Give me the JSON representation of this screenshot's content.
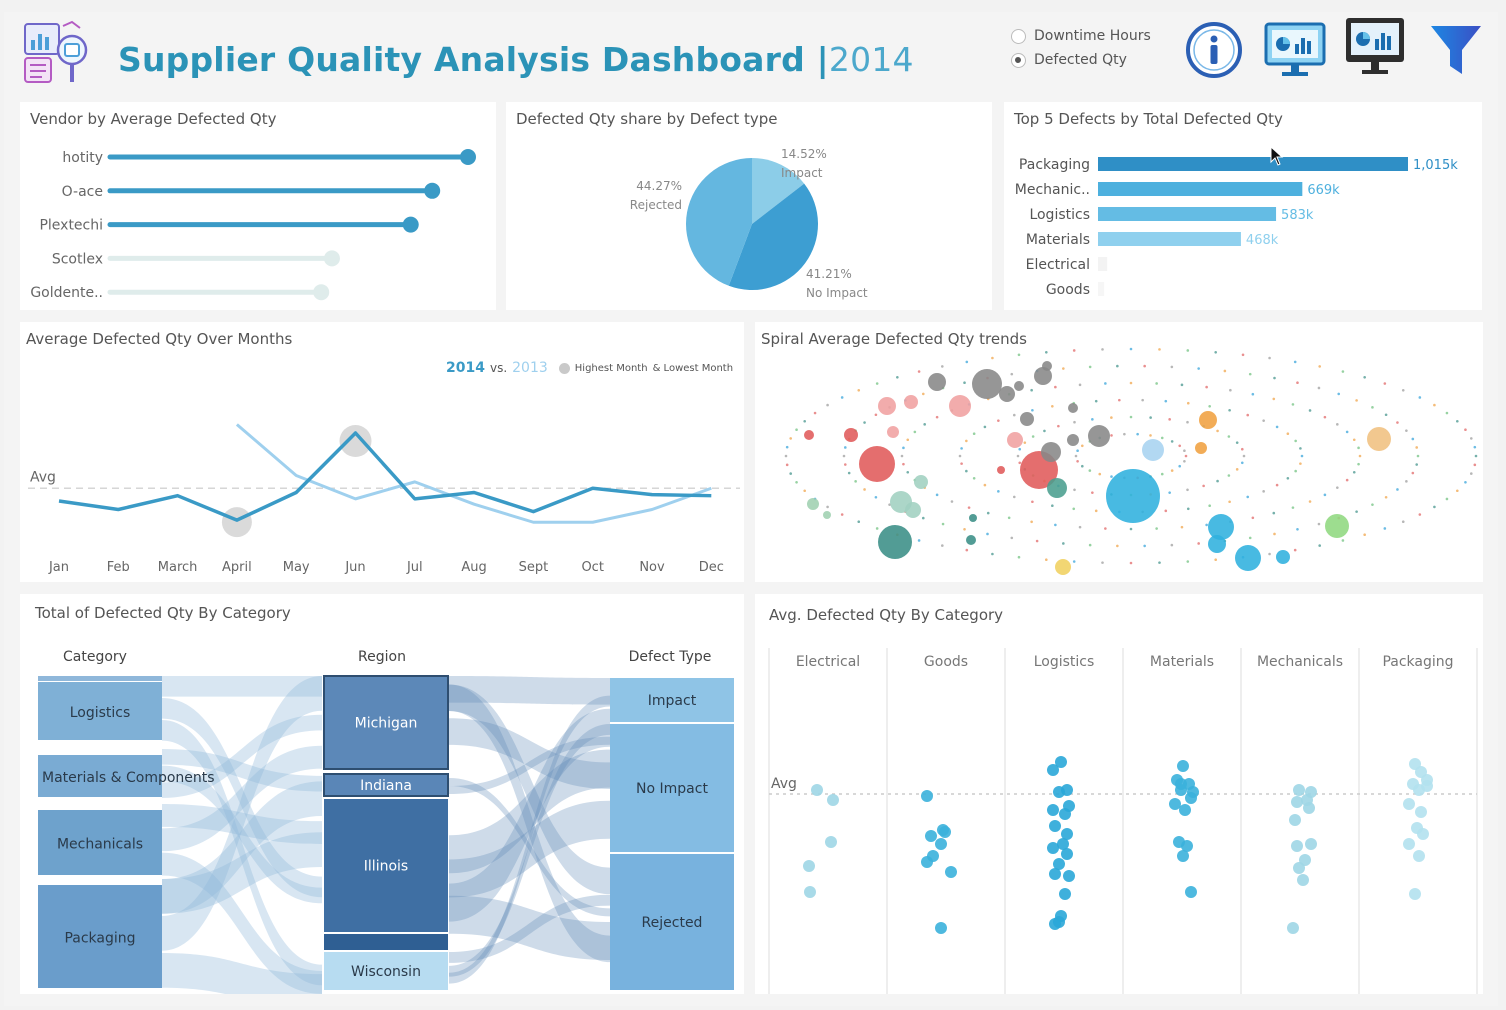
{
  "header": {
    "title": "Supplier Quality Analysis Dashboard",
    "separator": "|",
    "year": "2014",
    "radio_options": [
      {
        "label": "Downtime Hours",
        "selected": false
      },
      {
        "label": "Defected Qty",
        "selected": true
      }
    ],
    "icons": [
      "dashboard-logo-icon",
      "info-icon",
      "monitor-dashboard-icon",
      "dark-monitor-dashboard-icon",
      "filter-icon"
    ]
  },
  "colors": {
    "primary": "#2b93b7",
    "line_2014": "#3a9ac6",
    "line_2013": "#9fd0ee",
    "sankey_dark": "#4c7fae",
    "sankey_light": "#a9cfe7"
  },
  "vendor_panel": {
    "title": "Vendor  by Average Defected Qty",
    "chart_data": {
      "type": "bar",
      "categories": [
        "hotity",
        "O-ace",
        "Plextechi",
        "Scotlex",
        "Goldente.."
      ],
      "values": [
        1.0,
        0.9,
        0.84,
        0.62,
        0.59
      ],
      "highlighted": [
        true,
        true,
        true,
        false,
        false
      ]
    }
  },
  "pie_panel": {
    "title": "Defected Qty share by Defect type",
    "chart_data": {
      "type": "pie",
      "slices": [
        {
          "label": "Impact",
          "pct_label": "14.52%",
          "value": 14.52,
          "color": "#8ccde8"
        },
        {
          "label": "No Impact",
          "pct_label": "41.21%",
          "value": 41.21,
          "color": "#3d9ed2"
        },
        {
          "label": "Rejected",
          "pct_label": "44.27%",
          "value": 44.27,
          "color": "#64b7e0"
        }
      ]
    }
  },
  "top5_panel": {
    "title": "Top 5 Defects by Total Defected Qty",
    "chart_data": {
      "type": "bar",
      "categories": [
        "Packaging",
        "Mechanic..",
        "Logistics",
        "Materials",
        "Electrical",
        "Goods"
      ],
      "values": [
        1015,
        669,
        583,
        468,
        30,
        20
      ],
      "value_labels": [
        "1,015k",
        "669k",
        "583k",
        "468k",
        "",
        ""
      ],
      "colors": [
        "#2f8fc6",
        "#4db0de",
        "#64bce4",
        "#8fd0ee",
        "#f3f3f3",
        "#f6f6f6"
      ]
    }
  },
  "line_panel": {
    "title": "Average Defected Qty Over Months",
    "legend": {
      "year_a": "2014",
      "vs": "vs.",
      "year_b": "2013",
      "highest": "Highest Month",
      "lowest": "& Lowest Month"
    },
    "avg_label": "Avg",
    "chart_data": {
      "type": "line",
      "categories": [
        "Jan",
        "Feb",
        "March",
        "April",
        "May",
        "Jun",
        "Jul",
        "Aug",
        "Sept",
        "Oct",
        "Nov",
        "Dec"
      ],
      "series": [
        {
          "name": "2014",
          "values": [
            48,
            40,
            53,
            30,
            56,
            112,
            50,
            56,
            38,
            60,
            54,
            53
          ]
        },
        {
          "name": "2013",
          "values": [
            null,
            null,
            null,
            120,
            72,
            50,
            66,
            45,
            28,
            28,
            40,
            60
          ]
        }
      ],
      "avg": 60,
      "ylim": [
        0,
        160
      ],
      "highest_index": 5,
      "lowest_index": 3
    }
  },
  "spiral_panel": {
    "title": "Spiral Average Defected Qty trends"
  },
  "sankey_panel": {
    "title": "Total of Defected Qty By Category",
    "columns": [
      "Category",
      "Region",
      "Defect Type"
    ],
    "categories": [
      "Logistics",
      "Materials & Components",
      "Mechanicals",
      "Packaging"
    ],
    "regions": [
      "Michigan",
      "Indiana",
      "Illinois",
      "Wisconsin"
    ],
    "defect_types": [
      "Impact",
      "No Impact",
      "Rejected"
    ]
  },
  "strip_panel": {
    "title": "Avg. Defected Qty By Category",
    "avg_label": "Avg",
    "chart_data": {
      "type": "scatter",
      "categories": [
        "Electrical",
        "Goods",
        "Logistics",
        "Materials",
        "Mechanicals",
        "Packaging"
      ]
    }
  }
}
